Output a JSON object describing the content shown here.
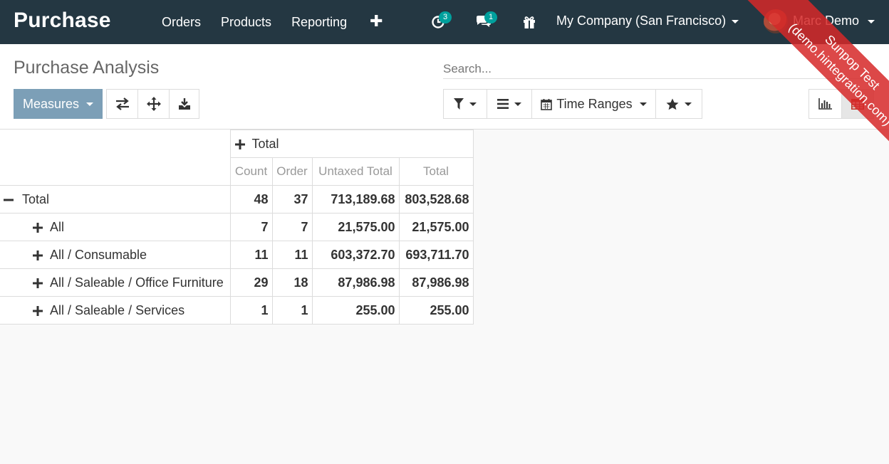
{
  "app": {
    "brand": "Purchase"
  },
  "nav": {
    "menu": [
      "Orders",
      "Products",
      "Reporting"
    ],
    "plus": "✚",
    "activity_badge": "3",
    "messages_badge": "1",
    "company": "My Company (San Francisco)",
    "user": "Marc Demo"
  },
  "ribbon": {
    "line1": "Sunpop Test",
    "line2": "(demo.hintegration.com)"
  },
  "control": {
    "title": "Purchase Analysis",
    "search_placeholder": "Search...",
    "measures_label": "Measures",
    "time_ranges_label": "Time Ranges"
  },
  "pivot": {
    "column_group": "Total",
    "measures": [
      "Count",
      "Order",
      "Untaxed Total",
      "Total"
    ],
    "total_row": {
      "label": "Total",
      "values": [
        "48",
        "37",
        "713,189.68",
        "803,528.68"
      ]
    },
    "rows": [
      {
        "label": "All",
        "values": [
          "7",
          "7",
          "21,575.00",
          "21,575.00"
        ]
      },
      {
        "label": "All / Consumable",
        "values": [
          "11",
          "11",
          "603,372.70",
          "693,711.70"
        ]
      },
      {
        "label": "All / Saleable / Office Furniture",
        "values": [
          "29",
          "18",
          "87,986.98",
          "87,986.98"
        ]
      },
      {
        "label": "All / Saleable / Services",
        "values": [
          "1",
          "1",
          "255.00",
          "255.00"
        ]
      }
    ]
  },
  "colors": {
    "navbar": "#243742",
    "primary": "#7c9fb7",
    "badge": "#00a09d",
    "ribbon": "#d62828",
    "active_view": "#c0392b"
  }
}
